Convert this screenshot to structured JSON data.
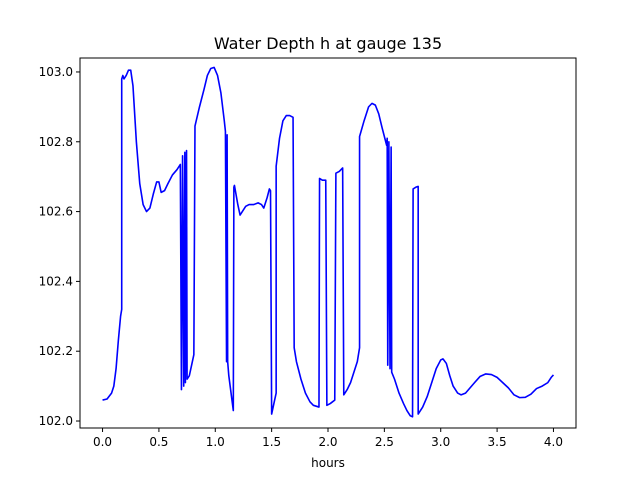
{
  "chart_data": {
    "type": "line",
    "title": "Water Depth h at gauge 135",
    "xlabel": "hours",
    "ylabel": "",
    "xlim": [
      -0.2,
      4.2
    ],
    "ylim": [
      101.98,
      103.04
    ],
    "grid": false,
    "line_color": "#0000ff",
    "xticks": [
      0.0,
      0.5,
      1.0,
      1.5,
      2.0,
      2.5,
      3.0,
      3.5,
      4.0
    ],
    "xtick_labels": [
      "0.0",
      "0.5",
      "1.0",
      "1.5",
      "2.0",
      "2.5",
      "3.0",
      "3.5",
      "4.0"
    ],
    "yticks": [
      102.0,
      102.2,
      102.4,
      102.6,
      102.8,
      103.0
    ],
    "ytick_labels": [
      "102.0",
      "102.2",
      "102.4",
      "102.6",
      "102.8",
      "103.0"
    ],
    "series": [
      {
        "points": [
          [
            0.0,
            102.06
          ],
          [
            0.04,
            102.063
          ],
          [
            0.08,
            102.08
          ],
          [
            0.1,
            102.1
          ],
          [
            0.12,
            102.15
          ],
          [
            0.14,
            102.23
          ],
          [
            0.16,
            102.3
          ],
          [
            0.17,
            102.32
          ],
          [
            0.17,
            102.98
          ],
          [
            0.18,
            102.99
          ],
          [
            0.19,
            102.98
          ],
          [
            0.21,
            102.99
          ],
          [
            0.23,
            103.005
          ],
          [
            0.25,
            103.005
          ],
          [
            0.27,
            102.96
          ],
          [
            0.3,
            102.8
          ],
          [
            0.33,
            102.68
          ],
          [
            0.36,
            102.62
          ],
          [
            0.39,
            102.6
          ],
          [
            0.42,
            102.61
          ],
          [
            0.45,
            102.65
          ],
          [
            0.48,
            102.685
          ],
          [
            0.5,
            102.685
          ],
          [
            0.52,
            102.655
          ],
          [
            0.55,
            102.66
          ],
          [
            0.58,
            102.68
          ],
          [
            0.62,
            102.705
          ],
          [
            0.66,
            102.72
          ],
          [
            0.69,
            102.735
          ],
          [
            0.7,
            102.09
          ],
          [
            0.71,
            102.76
          ],
          [
            0.72,
            102.1
          ],
          [
            0.73,
            102.77
          ],
          [
            0.735,
            102.11
          ],
          [
            0.745,
            102.775
          ],
          [
            0.75,
            102.12
          ],
          [
            0.77,
            102.13
          ],
          [
            0.79,
            102.16
          ],
          [
            0.81,
            102.19
          ],
          [
            0.82,
            102.845
          ],
          [
            0.86,
            102.9
          ],
          [
            0.9,
            102.95
          ],
          [
            0.93,
            102.99
          ],
          [
            0.96,
            103.01
          ],
          [
            0.99,
            103.013
          ],
          [
            1.02,
            102.99
          ],
          [
            1.05,
            102.94
          ],
          [
            1.08,
            102.86
          ],
          [
            1.09,
            102.83
          ],
          [
            1.1,
            102.17
          ],
          [
            1.105,
            102.82
          ],
          [
            1.11,
            102.17
          ],
          [
            1.12,
            102.13
          ],
          [
            1.16,
            102.03
          ],
          [
            1.165,
            102.67
          ],
          [
            1.17,
            102.675
          ],
          [
            1.2,
            102.62
          ],
          [
            1.22,
            102.59
          ],
          [
            1.24,
            102.6
          ],
          [
            1.27,
            102.615
          ],
          [
            1.3,
            102.62
          ],
          [
            1.34,
            102.62
          ],
          [
            1.38,
            102.625
          ],
          [
            1.41,
            102.62
          ],
          [
            1.43,
            102.61
          ],
          [
            1.46,
            102.64
          ],
          [
            1.48,
            102.665
          ],
          [
            1.49,
            102.66
          ],
          [
            1.5,
            102.02
          ],
          [
            1.52,
            102.05
          ],
          [
            1.54,
            102.08
          ],
          [
            1.54,
            102.73
          ],
          [
            1.57,
            102.81
          ],
          [
            1.6,
            102.86
          ],
          [
            1.63,
            102.875
          ],
          [
            1.66,
            102.875
          ],
          [
            1.69,
            102.87
          ],
          [
            1.7,
            102.21
          ],
          [
            1.72,
            102.17
          ],
          [
            1.76,
            102.12
          ],
          [
            1.8,
            102.08
          ],
          [
            1.84,
            102.055
          ],
          [
            1.87,
            102.045
          ],
          [
            1.92,
            102.04
          ],
          [
            1.925,
            102.695
          ],
          [
            1.95,
            102.69
          ],
          [
            1.97,
            102.69
          ],
          [
            1.98,
            102.69
          ],
          [
            1.99,
            102.045
          ],
          [
            2.02,
            102.05
          ],
          [
            2.04,
            102.055
          ],
          [
            2.06,
            102.06
          ],
          [
            2.07,
            102.71
          ],
          [
            2.1,
            102.715
          ],
          [
            2.13,
            102.725
          ],
          [
            2.14,
            102.075
          ],
          [
            2.17,
            102.09
          ],
          [
            2.2,
            102.11
          ],
          [
            2.23,
            102.14
          ],
          [
            2.26,
            102.17
          ],
          [
            2.28,
            102.21
          ],
          [
            2.28,
            102.815
          ],
          [
            2.32,
            102.86
          ],
          [
            2.36,
            102.9
          ],
          [
            2.39,
            102.91
          ],
          [
            2.42,
            102.905
          ],
          [
            2.45,
            102.88
          ],
          [
            2.48,
            102.84
          ],
          [
            2.52,
            102.79
          ],
          [
            2.525,
            102.81
          ],
          [
            2.53,
            102.16
          ],
          [
            2.54,
            102.8
          ],
          [
            2.55,
            102.15
          ],
          [
            2.56,
            102.785
          ],
          [
            2.565,
            102.14
          ],
          [
            2.59,
            102.12
          ],
          [
            2.63,
            102.08
          ],
          [
            2.67,
            102.05
          ],
          [
            2.7,
            102.03
          ],
          [
            2.73,
            102.015
          ],
          [
            2.75,
            102.012
          ],
          [
            2.755,
            102.665
          ],
          [
            2.78,
            102.67
          ],
          [
            2.8,
            102.672
          ],
          [
            2.8,
            102.02
          ],
          [
            2.84,
            102.04
          ],
          [
            2.88,
            102.07
          ],
          [
            2.92,
            102.11
          ],
          [
            2.96,
            102.15
          ],
          [
            3.0,
            102.175
          ],
          [
            3.02,
            102.178
          ],
          [
            3.05,
            102.165
          ],
          [
            3.08,
            102.13
          ],
          [
            3.11,
            102.1
          ],
          [
            3.15,
            102.08
          ],
          [
            3.18,
            102.075
          ],
          [
            3.22,
            102.08
          ],
          [
            3.26,
            102.095
          ],
          [
            3.3,
            102.11
          ],
          [
            3.35,
            102.128
          ],
          [
            3.4,
            102.135
          ],
          [
            3.45,
            102.133
          ],
          [
            3.5,
            102.125
          ],
          [
            3.55,
            102.11
          ],
          [
            3.6,
            102.095
          ],
          [
            3.65,
            102.075
          ],
          [
            3.7,
            102.067
          ],
          [
            3.75,
            102.068
          ],
          [
            3.8,
            102.077
          ],
          [
            3.85,
            102.093
          ],
          [
            3.9,
            102.1
          ],
          [
            3.95,
            102.11
          ],
          [
            3.98,
            102.125
          ],
          [
            4.0,
            102.132
          ]
        ]
      }
    ]
  }
}
